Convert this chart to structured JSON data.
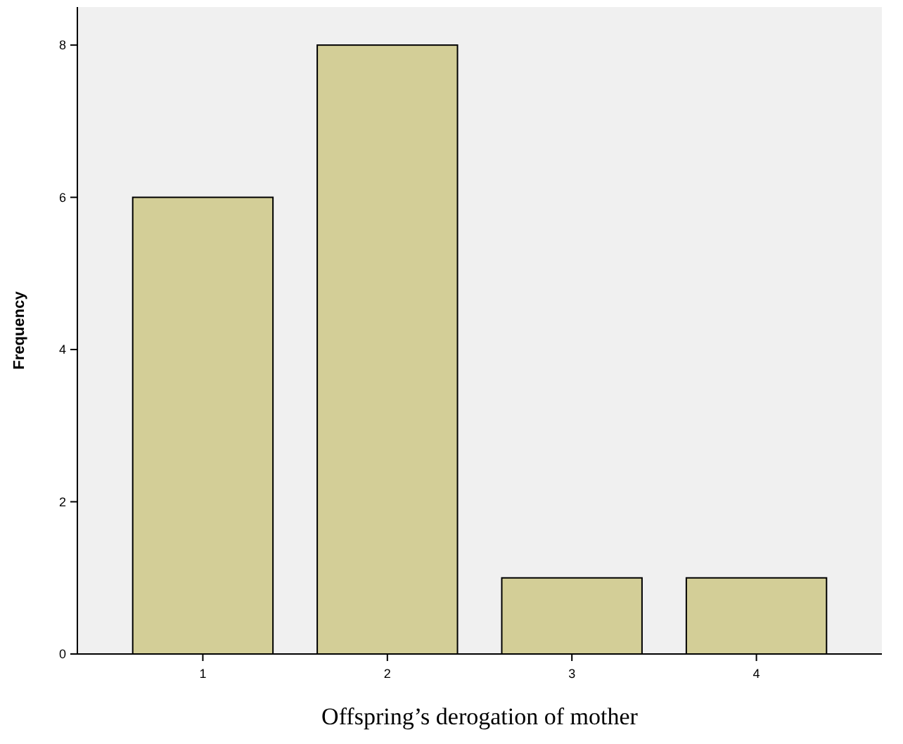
{
  "chart_data": {
    "type": "bar",
    "xlabel": "Offspring’s derogation of mother",
    "ylabel": "Frequency",
    "categories": [
      "1",
      "2",
      "3",
      "4"
    ],
    "values": [
      6,
      8,
      1,
      1
    ],
    "color": "#d3ce97",
    "ylim": [
      0,
      8.5
    ],
    "yticks": [
      0,
      2,
      4,
      6,
      8
    ],
    "grid": false
  }
}
